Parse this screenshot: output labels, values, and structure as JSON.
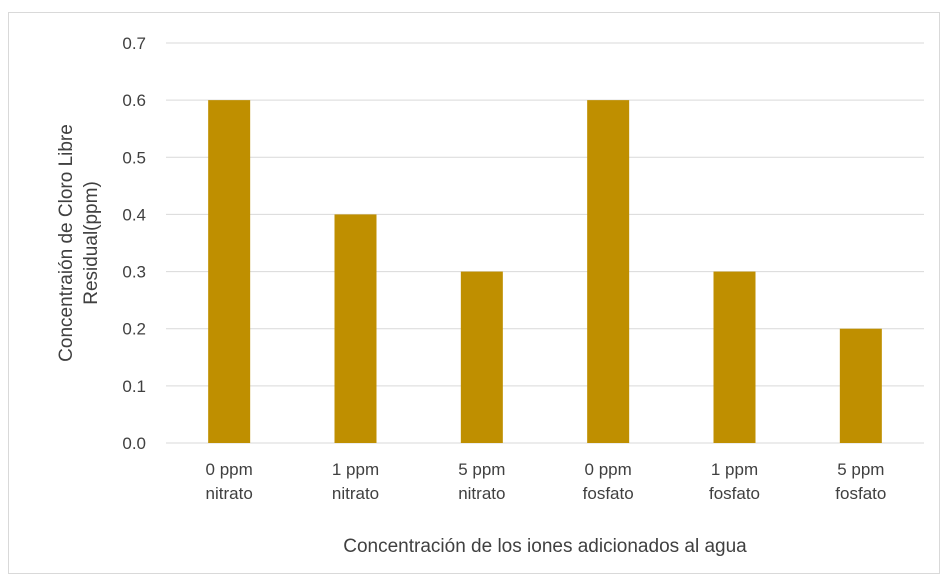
{
  "chart_data": {
    "type": "bar",
    "title": "",
    "categories": [
      [
        "0 ppm",
        "nitrato"
      ],
      [
        "1 ppm",
        "nitrato"
      ],
      [
        "5 ppm",
        "nitrato"
      ],
      [
        "0 ppm",
        "fosfato"
      ],
      [
        "1 ppm",
        "fosfato"
      ],
      [
        "5 ppm",
        "fosfato"
      ]
    ],
    "values": [
      0.6,
      0.4,
      0.3,
      0.6,
      0.3,
      0.2
    ],
    "xlabel": "Concentración de los iones  adicionados  al agua",
    "ylabel_lines": [
      "Concentraión de Cloro Libre",
      "Residual(ppm)"
    ],
    "yticks": [
      "0.0",
      "0.1",
      "0.2",
      "0.3",
      "0.4",
      "0.5",
      "0.6",
      "0.7"
    ],
    "ylim": [
      0,
      0.7
    ],
    "grid": true,
    "legend": "none",
    "colors": {
      "bar": "#bf8f00",
      "grid": "#d9d9d9",
      "text": "#404040"
    }
  }
}
